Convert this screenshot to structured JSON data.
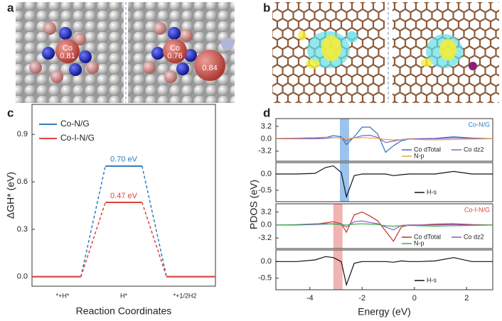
{
  "panel_labels": [
    "a",
    "b",
    "c",
    "d"
  ],
  "figure_a": {
    "labels": [
      "Co",
      "0.81",
      "Co",
      "0.76",
      "0.84"
    ]
  },
  "chart_data": [
    {
      "type": "energy",
      "ylabel": "ΔGH* (eV)",
      "xlabel": "Reaction Coordinates",
      "categories": [
        "*+H*",
        "H*",
        "*+1/2H2"
      ],
      "ylim": [
        -0.06,
        1.09
      ],
      "yticks": [
        {
          "value": 0,
          "label": "0.0"
        },
        0.3,
        0.6,
        0.9
      ],
      "legend": "upper left",
      "series": [
        {
          "name": "Co-N/G",
          "color": "#2f7bbf",
          "values": [
            0,
            0.7,
            0
          ],
          "value_labels": [
            null,
            "0.70 eV",
            null
          ]
        },
        {
          "name": "Co-I-N/G",
          "color": "#d8443f",
          "values": [
            0,
            0.47,
            0
          ],
          "value_labels": [
            null,
            "0.47 eV",
            null
          ]
        }
      ]
    },
    {
      "type": "line",
      "title": "Co-N/G",
      "title_color": "#2f7bbf",
      "ylabel": "PDOS (eV)",
      "xlim": [
        -5.3,
        3
      ],
      "ylim": [
        -5.8,
        5.2
      ],
      "yticks": [
        3.2,
        {
          "value": 0,
          "label": "0.0"
        },
        -3.2
      ],
      "highlight": [
        -2.85,
        -2.5
      ],
      "highlight_color": "#9cc3ee",
      "x": [
        -5.3,
        -4.5,
        -3.8,
        -3.4,
        -3.1,
        -2.8,
        -2.6,
        -2.3,
        -2.0,
        -1.7,
        -1.4,
        -1.1,
        -0.8,
        -0.5,
        -0.2,
        0.2,
        0.8,
        1.5,
        2.2,
        3
      ],
      "series": [
        {
          "name": "Co dTotal",
          "color": "#2f6fc0",
          "values": [
            0,
            0,
            0.1,
            0.3,
            0.8,
            0.5,
            -1.5,
            0.5,
            3,
            3,
            1.2,
            -3.5,
            -1.8,
            -0.5,
            -0.1,
            0,
            0.1,
            0.5,
            0.2,
            0
          ]
        },
        {
          "name": "Co dz2",
          "color": "#8a5cc4",
          "values": [
            0,
            0,
            0,
            0.1,
            0.3,
            0.2,
            -0.5,
            0.2,
            0.8,
            0.9,
            0.3,
            -1,
            -0.6,
            -0.2,
            0,
            0,
            0,
            0.2,
            0.1,
            0
          ]
        },
        {
          "name": "N-p",
          "color": "#e8a33a",
          "values": [
            0.1,
            0.2,
            0.3,
            0.4,
            0.3,
            0.2,
            0.1,
            0.2,
            0.3,
            0.2,
            0.1,
            -0.2,
            -0.3,
            -0.2,
            -0.1,
            -0.2,
            -0.3,
            -0.2,
            -0.1,
            0
          ]
        }
      ]
    },
    {
      "type": "line",
      "xlim": [
        -5.3,
        3
      ],
      "ylim": [
        -0.85,
        0.35
      ],
      "yticks": [
        {
          "value": 0,
          "label": "0.0"
        },
        -0.5
      ],
      "highlight": [
        -2.85,
        -2.5
      ],
      "highlight_color": "#9cc3ee",
      "x": [
        -5.3,
        -4.5,
        -3.8,
        -3.4,
        -3.1,
        -2.8,
        -2.6,
        -2.3,
        -2.0,
        -1.7,
        -1.4,
        -1.1,
        -0.8,
        -0.5,
        -0.2,
        0.2,
        0.8,
        1.5,
        2.2,
        3
      ],
      "series": [
        {
          "name": "H-s",
          "color": "#111111",
          "values": [
            0,
            0,
            0.02,
            0.2,
            0.25,
            0.05,
            -0.7,
            -0.05,
            0,
            0,
            0,
            0,
            -0.05,
            -0.02,
            0,
            0,
            0,
            0.08,
            0,
            0
          ]
        }
      ]
    },
    {
      "type": "line",
      "title": "Co-I-N/G",
      "title_color": "#d8443f",
      "xlim": [
        -5.3,
        3
      ],
      "ylim": [
        -5.8,
        5.2
      ],
      "yticks": [
        3.2,
        {
          "value": 0,
          "label": "0.0"
        },
        -3.2
      ],
      "highlight": [
        -3.1,
        -2.75
      ],
      "highlight_color": "#f2b3b3",
      "x": [
        -5.3,
        -4.5,
        -3.8,
        -3.4,
        -3.1,
        -2.8,
        -2.6,
        -2.3,
        -2.0,
        -1.7,
        -1.4,
        -1.1,
        -0.8,
        -0.5,
        -0.2,
        0.2,
        0.8,
        1.5,
        2.2,
        3
      ],
      "series": [
        {
          "name": "Co dTotal",
          "color": "#c0302b",
          "values": [
            0,
            0,
            0.2,
            0.5,
            0.8,
            0.3,
            -1.8,
            2.5,
            3.2,
            2.2,
            1,
            -1.5,
            -4,
            -0.5,
            0,
            0,
            0.2,
            0.3,
            0.1,
            0
          ]
        },
        {
          "name": "Co dz2",
          "color": "#8a5cc4",
          "values": [
            0,
            0,
            0.1,
            0.2,
            0.3,
            0.1,
            -0.5,
            0.8,
            1,
            0.6,
            0.3,
            -0.5,
            -1.2,
            -0.1,
            0,
            0,
            0,
            0.1,
            0,
            0
          ]
        },
        {
          "name": "N-p",
          "color": "#3fae4a",
          "values": [
            0,
            0.1,
            0.3,
            0.3,
            0.2,
            0.1,
            0,
            0.2,
            0.3,
            0.2,
            0.1,
            -0.2,
            -0.3,
            -0.2,
            -0.1,
            -0.2,
            -0.3,
            -0.2,
            -0.1,
            0
          ]
        }
      ]
    },
    {
      "type": "line",
      "xlabel": "Energy (eV)",
      "xlim": [
        -5.3,
        3
      ],
      "ylim": [
        -0.85,
        0.35
      ],
      "xticks": [
        -4,
        -2,
        0,
        2
      ],
      "yticks": [
        {
          "value": 0,
          "label": "0.0"
        },
        -0.5
      ],
      "highlight": [
        -3.1,
        -2.75
      ],
      "highlight_color": "#f2b3b3",
      "x": [
        -5.3,
        -4.5,
        -3.8,
        -3.4,
        -3.1,
        -2.8,
        -2.6,
        -2.3,
        -2.0,
        -1.7,
        -1.4,
        -1.1,
        -0.8,
        -0.5,
        -0.2,
        0.2,
        0.8,
        1.5,
        2.2,
        3
      ],
      "series": [
        {
          "name": "H-s",
          "color": "#111111",
          "values": [
            0,
            0,
            0.05,
            0.15,
            0.12,
            0,
            -0.7,
            -0.05,
            0,
            0,
            0,
            0,
            -0.02,
            0.02,
            0,
            0,
            0.02,
            0.12,
            0,
            0
          ]
        }
      ]
    }
  ]
}
